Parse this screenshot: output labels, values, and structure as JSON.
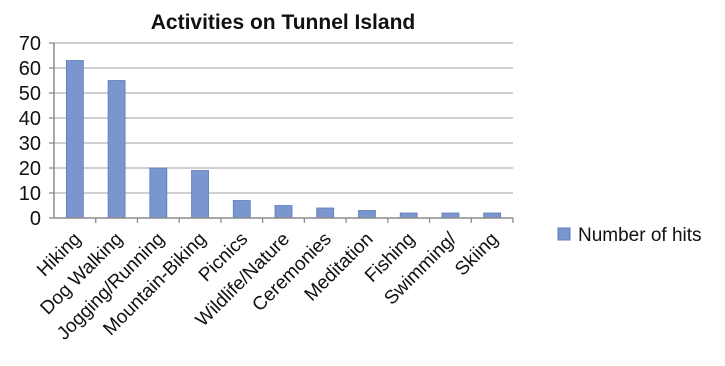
{
  "chart_data": {
    "type": "bar",
    "title": "Activities on Tunnel Island",
    "xlabel": "",
    "ylabel": "",
    "categories": [
      "Hiking",
      "Dog Walking",
      "Jogging/Running",
      "Mountain-Biking",
      "Picnics",
      "Wildlife/Nature",
      "Ceremonies",
      "Meditation",
      "Fishing",
      "Swimming/",
      "Skiing"
    ],
    "series": [
      {
        "name": "Number of hits",
        "values": [
          63,
          55,
          20,
          19,
          7,
          5,
          4,
          3,
          2,
          2,
          2
        ]
      }
    ],
    "ylim": [
      0,
      70
    ],
    "yticks": [
      0,
      10,
      20,
      30,
      40,
      50,
      60,
      70
    ],
    "grid": true,
    "legend": "right",
    "colors": {
      "bar": "#7a96cf",
      "bar_stroke": "#5f7cb8",
      "grid": "#b5b5b5",
      "axis": "#8c8c8c"
    }
  }
}
